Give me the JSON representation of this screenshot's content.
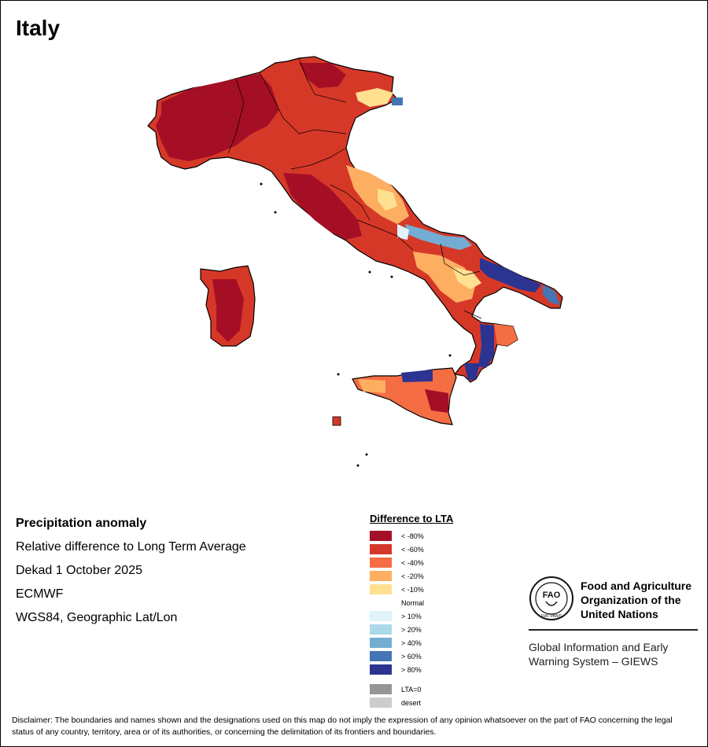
{
  "map": {
    "title": "Italy",
    "regions": [
      "Mainland Italy",
      "Sardinia",
      "Sicily"
    ]
  },
  "info": {
    "heading": "Precipitation anomaly",
    "subtitle": "Relative difference to Long Term Average",
    "period": "Dekad 1 October 2025",
    "source": "ECMWF",
    "projection": "WGS84, Geographic Lat/Lon"
  },
  "legend": {
    "title": "Difference to LTA",
    "classes": [
      {
        "label": "< -80%",
        "color": "#a50f26"
      },
      {
        "label": "< -60%",
        "color": "#d63828"
      },
      {
        "label": "< -40%",
        "color": "#f46d43"
      },
      {
        "label": "< -20%",
        "color": "#fdae61"
      },
      {
        "label": "< -10%",
        "color": "#fee090"
      },
      {
        "label": "Normal",
        "color": "#ffffff"
      },
      {
        "label": "> 10%",
        "color": "#e0f3f8"
      },
      {
        "label": "> 20%",
        "color": "#abd9e9"
      },
      {
        "label": "> 40%",
        "color": "#74add1"
      },
      {
        "label": "> 60%",
        "color": "#4575b4"
      },
      {
        "label": "> 80%",
        "color": "#2c3491"
      }
    ],
    "extra": [
      {
        "label": "LTA=0",
        "color": "#969696"
      },
      {
        "label": "desert",
        "color": "#cccccc"
      }
    ]
  },
  "logo": {
    "org_name": "Food and Agriculture\nOrganization of the\nUnited Nations",
    "emblem_text": "FIAT PANIS",
    "program": "Global Information and Early\nWarning System – GIEWS"
  },
  "disclaimer": "Disclaimer: The boundaries and names shown and the designations used on this map do not imply the expression of any opinion whatsoever on the part of FAO concerning the legal status of any country, territory, area or of its authorities, or concerning the delimitation of its frontiers and boundaries."
}
